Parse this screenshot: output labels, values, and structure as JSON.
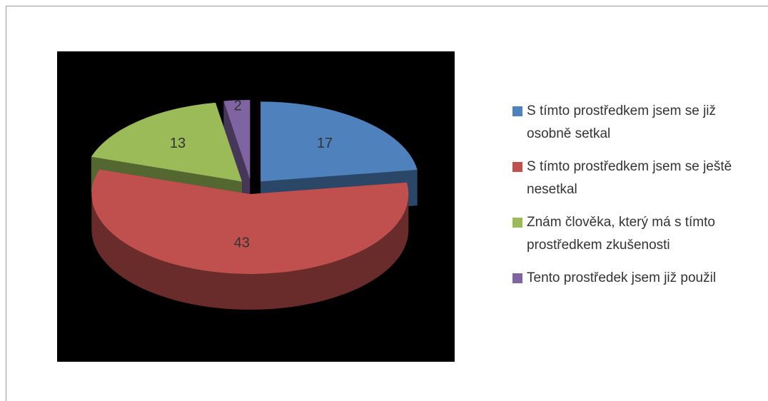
{
  "chart_data": {
    "type": "pie",
    "three_d": true,
    "exploded": true,
    "categories": [
      "S tímto prostředkem jsem se již osobně setkal",
      "S tímto prostředkem jsem se ještě nesetkal",
      "Znám člověka, který má s tímto prostředkem zkušenosti",
      "Tento prostředek jsem již použil"
    ],
    "values": [
      17,
      43,
      13,
      2
    ],
    "colors": [
      "#4f81bd",
      "#c0504d",
      "#9bbb59",
      "#8064a2"
    ],
    "legend": "right"
  }
}
